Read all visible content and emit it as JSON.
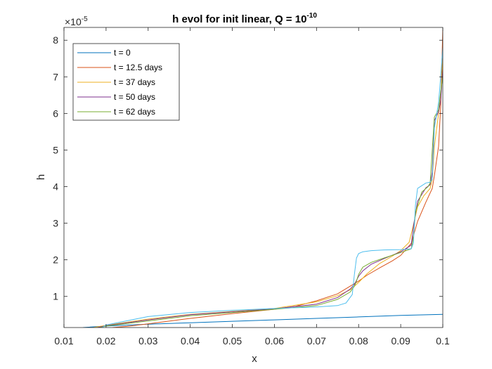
{
  "chart_data": {
    "type": "line",
    "title": "h evol for init linear, Q = 10",
    "title_exponent": "-10",
    "xlabel": "x",
    "ylabel": "h",
    "y_multiplier": "×10",
    "y_multiplier_exponent": "-5",
    "xlim": [
      0.01,
      0.1
    ],
    "ylim": [
      0.15,
      8.35
    ],
    "y_scale": 1e-05,
    "xticks": [
      0.01,
      0.02,
      0.03,
      0.04,
      0.05,
      0.06,
      0.07,
      0.08,
      0.09,
      0.1
    ],
    "xtick_labels": [
      "0.01",
      "0.02",
      "0.03",
      "0.04",
      "0.05",
      "0.06",
      "0.07",
      "0.08",
      "0.09",
      "0.1"
    ],
    "yticks": [
      1,
      2,
      3,
      4,
      5,
      6,
      7,
      8
    ],
    "ytick_labels": [
      "1",
      "2",
      "3",
      "4",
      "5",
      "6",
      "7",
      "8"
    ],
    "grid": false,
    "legend_position": "top-left",
    "series": [
      {
        "name": "t = 0",
        "color": "#0072BD",
        "x": [
          0.0145,
          0.02,
          0.03,
          0.04,
          0.05,
          0.06,
          0.07,
          0.08,
          0.09,
          0.1
        ],
        "y": [
          0.15,
          0.19,
          0.24,
          0.28,
          0.32,
          0.36,
          0.4,
          0.44,
          0.48,
          0.51
        ]
      },
      {
        "name": "t = 12.5 days",
        "color": "#D95319",
        "x": [
          0.0215,
          0.025,
          0.03,
          0.04,
          0.05,
          0.06,
          0.065,
          0.07,
          0.075,
          0.08,
          0.082,
          0.085,
          0.088,
          0.09,
          0.0925,
          0.094,
          0.096,
          0.0975,
          0.098,
          0.099,
          0.0995,
          0.1
        ],
        "y": [
          0.15,
          0.18,
          0.25,
          0.4,
          0.53,
          0.65,
          0.73,
          0.88,
          1.07,
          1.42,
          1.58,
          1.78,
          1.97,
          2.12,
          2.45,
          3.05,
          3.58,
          3.95,
          4.3,
          5.1,
          6.2,
          8.3
        ]
      },
      {
        "name": "t = 37 days",
        "color": "#EDB120",
        "x": [
          0.017,
          0.02,
          0.03,
          0.04,
          0.05,
          0.06,
          0.07,
          0.075,
          0.078,
          0.08,
          0.082,
          0.085,
          0.088,
          0.09,
          0.092,
          0.093,
          0.094,
          0.0955,
          0.097,
          0.0975,
          0.098,
          0.099,
          0.0995,
          0.1
        ],
        "y": [
          0.15,
          0.21,
          0.38,
          0.51,
          0.59,
          0.67,
          0.85,
          1.02,
          1.18,
          1.38,
          1.62,
          1.9,
          2.1,
          2.25,
          2.48,
          2.95,
          3.45,
          3.75,
          3.95,
          4.2,
          5.1,
          6.0,
          6.4,
          7.5
        ]
      },
      {
        "name": "t = 50 days",
        "color": "#7E2F8E",
        "x": [
          0.018,
          0.02,
          0.03,
          0.04,
          0.05,
          0.06,
          0.07,
          0.075,
          0.078,
          0.079,
          0.08,
          0.081,
          0.083,
          0.086,
          0.09,
          0.0925,
          0.093,
          0.094,
          0.096,
          0.097,
          0.0975,
          0.098,
          0.099,
          0.0995,
          0.1
        ],
        "y": [
          0.15,
          0.2,
          0.36,
          0.5,
          0.58,
          0.66,
          0.79,
          0.97,
          1.2,
          1.33,
          1.55,
          1.7,
          1.88,
          2.03,
          2.22,
          2.4,
          2.9,
          3.6,
          3.97,
          4.05,
          4.4,
          5.8,
          6.05,
          6.35,
          7.2
        ]
      },
      {
        "name": "t = 62 days",
        "color": "#77AC30",
        "x": [
          0.0185,
          0.02,
          0.03,
          0.04,
          0.05,
          0.06,
          0.07,
          0.075,
          0.078,
          0.079,
          0.0795,
          0.08,
          0.081,
          0.083,
          0.086,
          0.09,
          0.0925,
          0.093,
          0.0935,
          0.095,
          0.0965,
          0.097,
          0.0975,
          0.098,
          0.099,
          0.0995,
          0.1
        ],
        "y": [
          0.15,
          0.19,
          0.33,
          0.47,
          0.56,
          0.65,
          0.75,
          0.92,
          1.12,
          1.28,
          1.42,
          1.6,
          1.8,
          1.93,
          2.05,
          2.2,
          2.3,
          2.6,
          3.3,
          3.85,
          4.0,
          4.1,
          5.0,
          5.9,
          6.1,
          6.6,
          7.0
        ]
      },
      {
        "name": "",
        "color": "#4DBEEE",
        "x": [
          0.019,
          0.02,
          0.03,
          0.04,
          0.05,
          0.06,
          0.07,
          0.075,
          0.077,
          0.0785,
          0.079,
          0.0795,
          0.08,
          0.081,
          0.083,
          0.086,
          0.09,
          0.0925,
          0.093,
          0.0935,
          0.094,
          0.096,
          0.097,
          0.0975,
          0.098,
          0.099,
          0.0995,
          0.1
        ],
        "y": [
          0.15,
          0.22,
          0.45,
          0.56,
          0.62,
          0.67,
          0.71,
          0.75,
          0.82,
          1.05,
          1.6,
          2.05,
          2.17,
          2.22,
          2.25,
          2.27,
          2.28,
          2.3,
          2.45,
          3.5,
          3.95,
          4.1,
          4.12,
          4.2,
          5.6,
          6.3,
          7.0,
          7.8
        ]
      }
    ]
  }
}
